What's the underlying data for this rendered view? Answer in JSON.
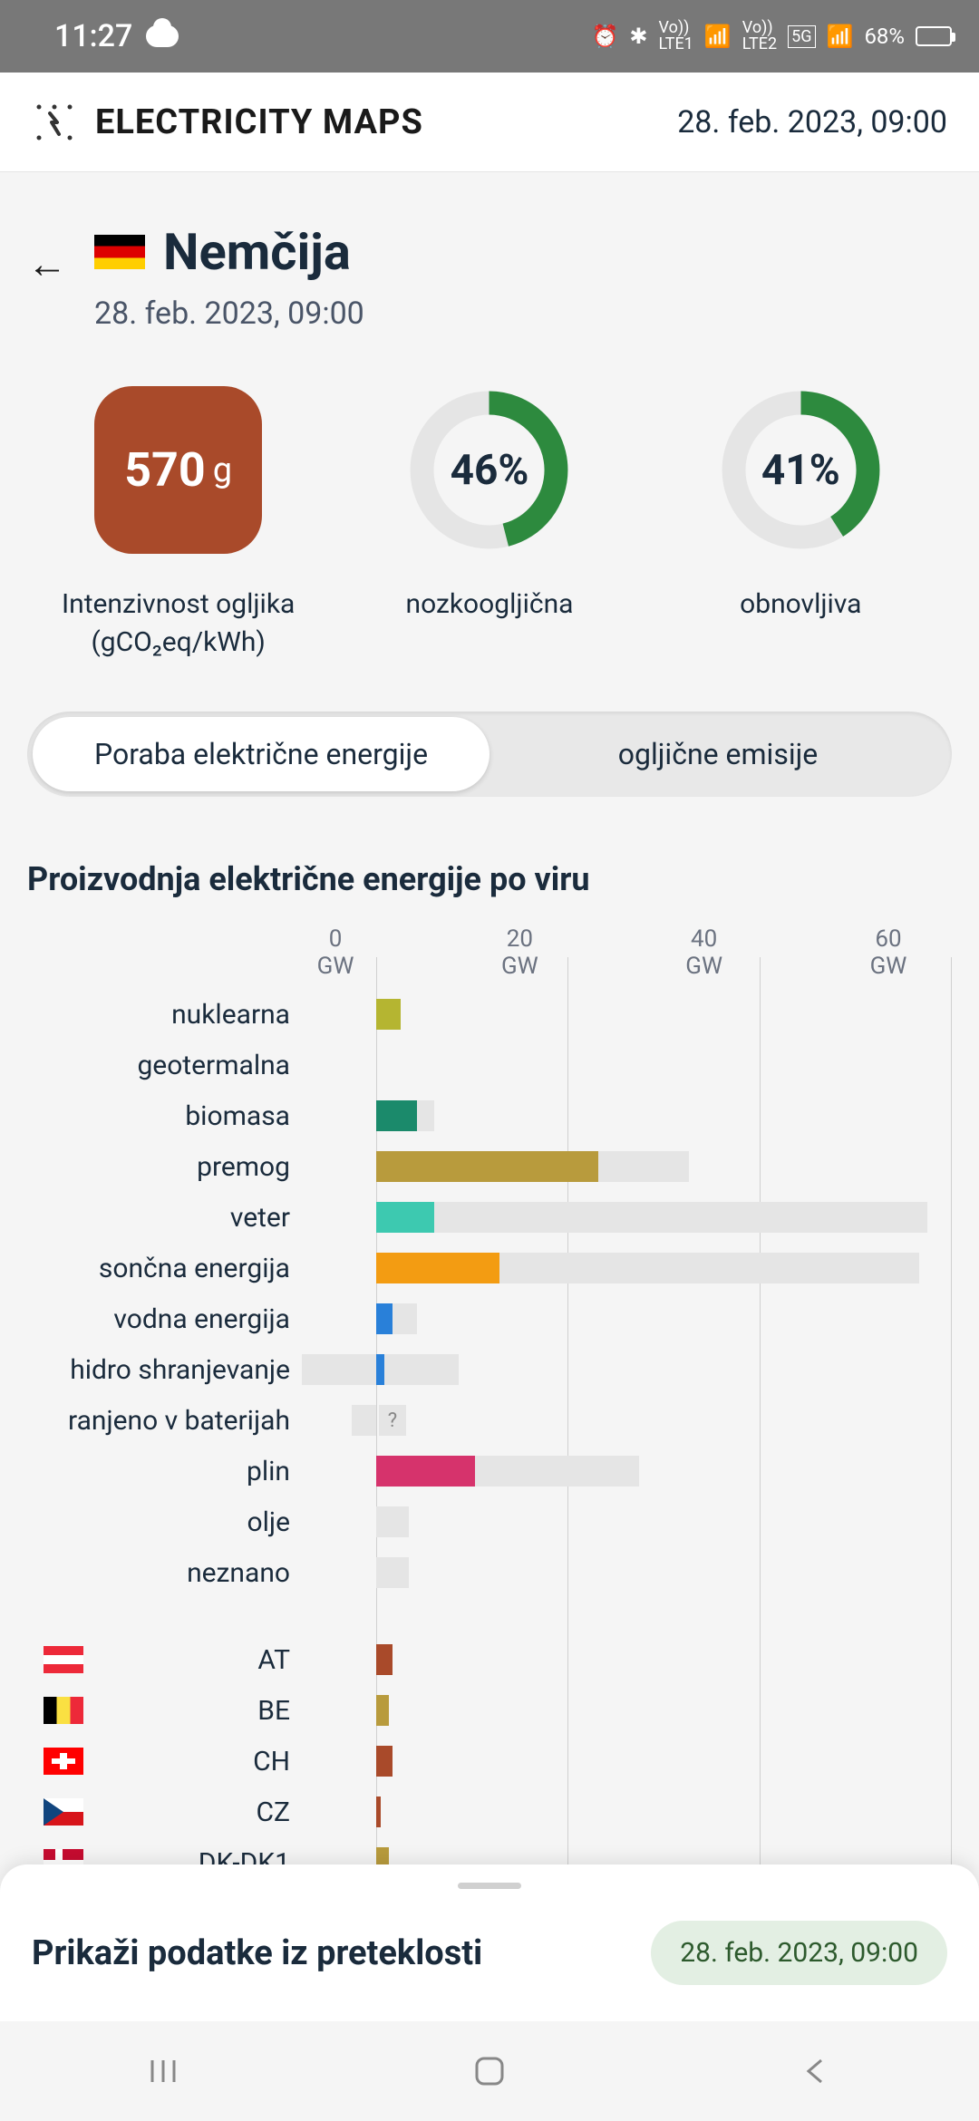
{
  "status_bar": {
    "time": "11:27",
    "battery_percent": "68%",
    "lte1": "LTE1",
    "lte2": "LTE2",
    "net5g": "5G"
  },
  "header": {
    "title": "ELECTRICITY MAPS",
    "date": "28. feb. 2023, 09:00"
  },
  "zone": {
    "name": "Nemčija",
    "date": "28. feb. 2023, 09:00",
    "flag_colors": [
      "#000000",
      "#dd0000",
      "#ffce00"
    ]
  },
  "stats": {
    "carbon": {
      "value": "570",
      "unit": "g",
      "label1": "Intenzivnost ogljika",
      "label2": "(gCO₂eq/kWh)",
      "bg_color": "#a94a2a"
    },
    "low_carbon": {
      "value": "46%",
      "percent": 46,
      "label": "nozkoogljična",
      "color": "#2d8a3e",
      "track": "#e5e5e5"
    },
    "renewable": {
      "value": "41%",
      "percent": 41,
      "label": "obnovljiva",
      "color": "#2d8a3e",
      "track": "#e5e5e5"
    }
  },
  "toggle": {
    "option1": "Poraba električne energije",
    "option2": "ogljične emisije"
  },
  "chart": {
    "title": "Proizvodnja električne energije po viru",
    "axis_unit": "GW",
    "axis_ticks": [
      "0 GW",
      "20 GW",
      "40 GW",
      "60 GW"
    ],
    "max_value": 70,
    "bar_colors": {
      "nuclear": "#b5b531",
      "geothermal": "#8b4a2b",
      "biomass": "#1b8a6b",
      "coal": "#b89b3d",
      "wind": "#3dc9b0",
      "solar": "#f39c12",
      "hydro": "#2980d9",
      "hydro_storage": "#2980d9",
      "battery": "#888888",
      "gas": "#d6336c",
      "oil": "#888888",
      "unknown": "#888888"
    },
    "capacity_color": "#e5e5e5",
    "sources": [
      {
        "label": "nuklearna",
        "value": 3,
        "capacity": 3,
        "color": "#b5b531"
      },
      {
        "label": "geotermalna",
        "value": 0,
        "capacity": 0,
        "color": "#8b4a2b"
      },
      {
        "label": "biomasa",
        "value": 5,
        "capacity": 7,
        "color": "#1b8a6b"
      },
      {
        "label": "premog",
        "value": 27,
        "capacity": 38,
        "color": "#b89b3d"
      },
      {
        "label": "veter",
        "value": 7,
        "capacity": 67,
        "color": "#3dc9b0"
      },
      {
        "label": "sončna energija",
        "value": 15,
        "capacity": 66,
        "color": "#f39c12"
      },
      {
        "label": "vodna energija",
        "value": 2,
        "capacity": 5,
        "color": "#2980d9"
      },
      {
        "label": "hidro shranjevanje",
        "value": 1,
        "capacity": 10,
        "neg_capacity": 9,
        "color": "#2980d9"
      },
      {
        "label": "ranjeno v baterijah",
        "value": 0,
        "capacity": 0,
        "neg_capacity": 3,
        "unknown": true,
        "color": "#888888"
      },
      {
        "label": "plin",
        "value": 12,
        "capacity": 32,
        "color": "#d6336c"
      },
      {
        "label": "olje",
        "value": 0,
        "capacity": 4,
        "color": "#888888"
      },
      {
        "label": "neznano",
        "value": 0,
        "capacity": 4,
        "color": "#888888"
      }
    ],
    "countries": [
      {
        "code": "AT",
        "flag": "flag-at",
        "value": 2,
        "color": "#a94a2a"
      },
      {
        "code": "BE",
        "flag": "flag-be",
        "value": 1.5,
        "color": "#b89b3d"
      },
      {
        "code": "CH",
        "flag": "flag-ch",
        "value": 2,
        "color": "#a94a2a"
      },
      {
        "code": "CZ",
        "flag": "flag-cz",
        "value": 0.5,
        "color": "#a94a2a"
      },
      {
        "code": "DK-DK1",
        "flag": "flag-dk",
        "value": 1.5,
        "color": "#b89b3d"
      }
    ]
  },
  "bottom_sheet": {
    "title": "Prikaži podatke iz preteklosti",
    "date": "28. feb. 2023, 09:00",
    "chip_bg": "#e3efe3",
    "chip_text": "#2d5a2d"
  }
}
